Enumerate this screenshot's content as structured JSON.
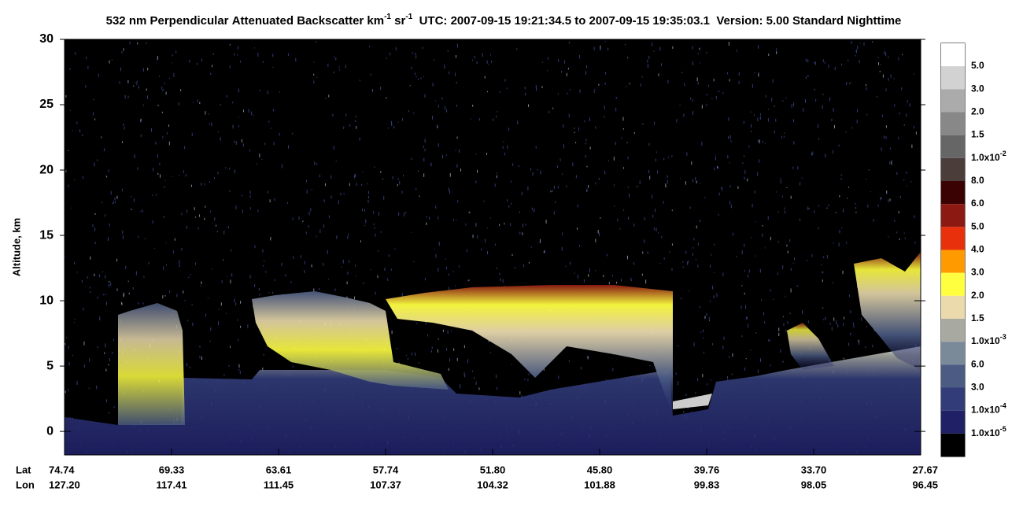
{
  "chart_data": {
    "type": "curtain",
    "title_parts": [
      "532 nm Perpendicular Attenuated Backscatter km",
      "-1",
      " sr",
      "-1",
      "  UTC: 2007-09-15 19:21:34.5 to 2007-09-15 19:35:03.1  Version: 5.00 Standard Nighttime"
    ],
    "ylabel": "Altitude, km",
    "ylim": [
      -1.8,
      30
    ],
    "yticks": [
      0,
      5,
      10,
      15,
      20,
      25,
      30
    ],
    "x_row_labels": [
      "Lat",
      "Lon"
    ],
    "lat": [
      "74.74",
      "69.33",
      "63.61",
      "57.74",
      "51.80",
      "45.80",
      "39.76",
      "33.70",
      "27.67"
    ],
    "lon": [
      "127.20",
      "117.41",
      "111.45",
      "107.37",
      "104.32",
      "101.88",
      "99.83",
      "98.05",
      "96.45"
    ],
    "colorbar": {
      "colors": [
        "#ffffff",
        "#d2d2d2",
        "#ababab",
        "#888888",
        "#666666",
        "#4a3d3a",
        "#3a0202",
        "#8c1a12",
        "#e8300c",
        "#ff9a00",
        "#ffff40",
        "#eadaac",
        "#a8aaa2",
        "#7b8a98",
        "#4b5b84",
        "#313c78",
        "#1f2066",
        "#000000"
      ],
      "labels": [
        {
          "text": "5.0"
        },
        {
          "text": "3.0"
        },
        {
          "text": "2.0"
        },
        {
          "text": "1.5"
        },
        {
          "text": "1.0x10",
          "sup": "-2"
        },
        {
          "text": "8.0"
        },
        {
          "text": "6.0"
        },
        {
          "text": "5.0"
        },
        {
          "text": "4.0"
        },
        {
          "text": "3.0"
        },
        {
          "text": "2.0"
        },
        {
          "text": "1.5"
        },
        {
          "text": "1.0x10",
          "sup": "-3"
        },
        {
          "text": "6.0"
        },
        {
          "text": "3.0"
        },
        {
          "text": "1.0x10",
          "sup": "-4"
        },
        {
          "text": "1.0x10",
          "sup": "-5"
        }
      ]
    }
  }
}
